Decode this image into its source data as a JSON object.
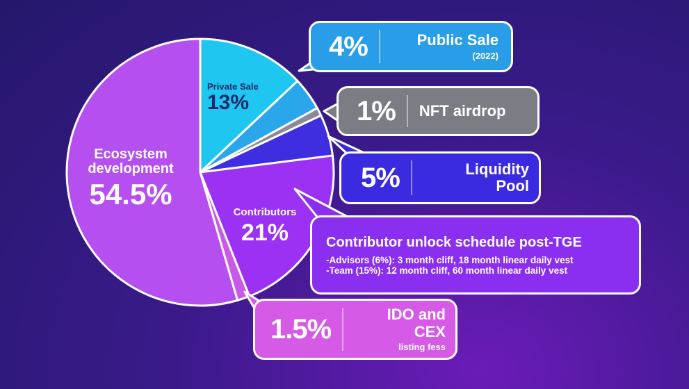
{
  "chart_data": {
    "type": "pie",
    "title": "",
    "slices": [
      {
        "label": "Private Sale",
        "value": 13,
        "display": "13%",
        "color": "#1ec6f0"
      },
      {
        "label": "Public Sale",
        "value": 4,
        "display": "4%",
        "color": "#2aa7ea"
      },
      {
        "label": "NFT airdrop",
        "value": 1,
        "display": "1%",
        "color": "#8a8a9a"
      },
      {
        "label": "Liquidity Pool",
        "value": 5,
        "display": "5%",
        "color": "#3f2ee0"
      },
      {
        "label": "Contributors",
        "value": 21,
        "display": "21%",
        "color": "#9b31f2"
      },
      {
        "label": "IDO and CEX listing fess",
        "value": 1.5,
        "display": "1.5%",
        "color": "#c85ae8"
      },
      {
        "label": "Ecosystem development",
        "value": 54.5,
        "display": "54.5%",
        "color": "#b64ff0"
      }
    ]
  },
  "labels": {
    "private_sale_name": "Private Sale",
    "private_sale_pct": "13%",
    "ecosystem_name_1": "Ecosystem",
    "ecosystem_name_2": "development",
    "ecosystem_pct": "54.5%",
    "contributors_name": "Contributors",
    "contributors_pct": "21%"
  },
  "callouts": {
    "public_sale": {
      "pct": "4%",
      "title": "Public Sale",
      "sub": "(2022)",
      "color": "#2a9de8"
    },
    "nft_airdrop": {
      "pct": "1%",
      "title": "NFT airdrop",
      "color": "#7c7c85"
    },
    "liquidity": {
      "pct": "5%",
      "title_1": "Liquidity",
      "title_2": "Pool",
      "color": "#3a2be0"
    },
    "contributor_schedule": {
      "title": "Contributor unlock schedule post-TGE",
      "line_1": "-Advisors (6%): 3 month cliff, 18 month linear daily vest",
      "line_2": "-Team (15%): 12 month cliff, 60 month linear daily vest",
      "color": "#8a2ff0"
    },
    "ido": {
      "pct": "1.5%",
      "title": "IDO and CEX",
      "sub": "listing fess",
      "color": "#d55ae6"
    }
  }
}
